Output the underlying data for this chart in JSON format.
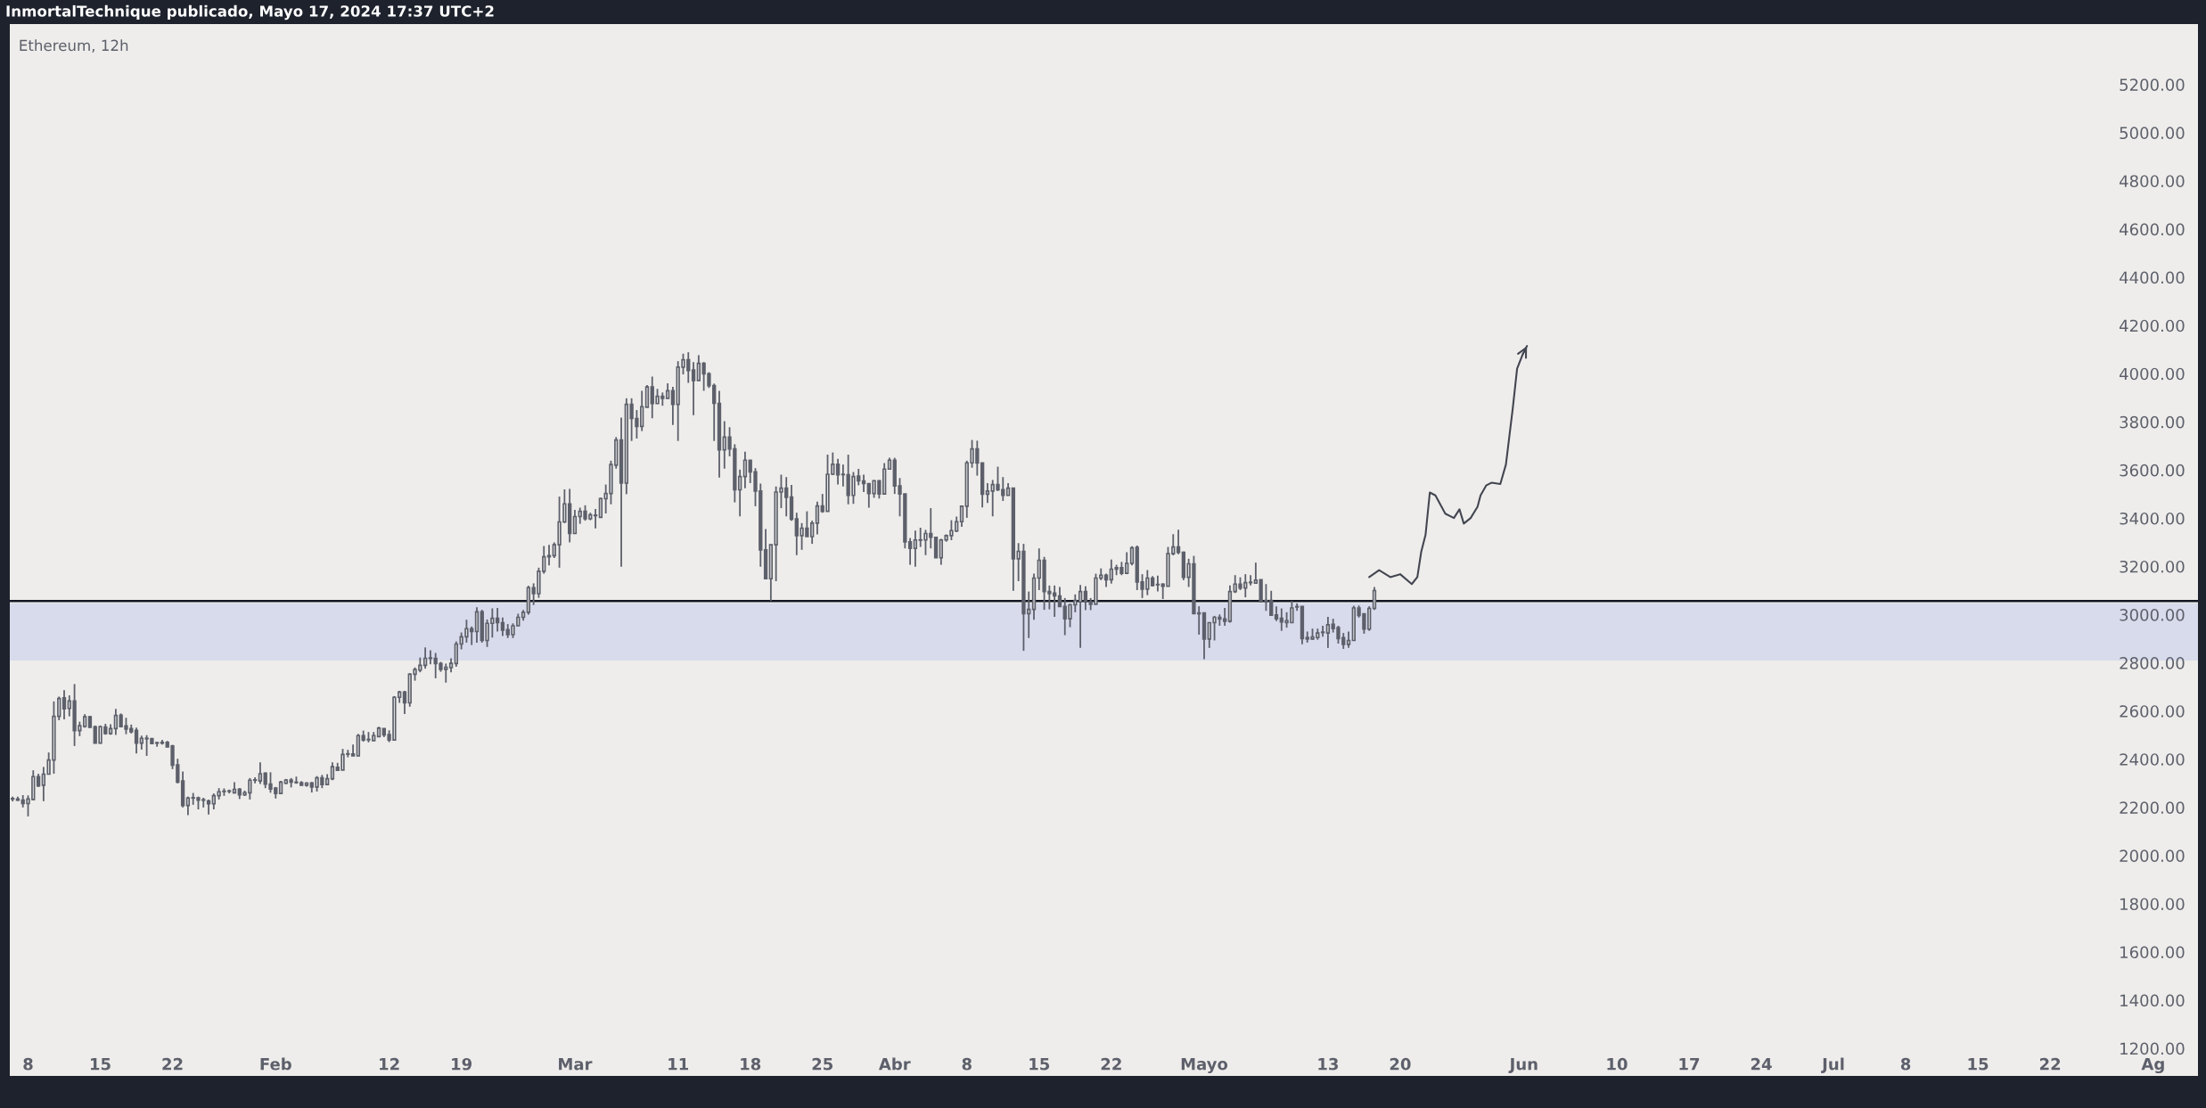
{
  "chart_data": {
    "type": "candlestick",
    "title": "Ethereum, 12h",
    "annotations": [
      "InmortalTechnique publicado, Mayo 17, 2024 17:37 UTC+2"
    ],
    "color": "#5d606b",
    "ref_lines": [
      {
        "axis": "y",
        "value": 3057,
        "color": "#131722",
        "line_style": "solid"
      }
    ],
    "bands": [
      {
        "axis": "y",
        "from": 2810,
        "to": 3047,
        "color": "#d8dbeb"
      }
    ],
    "xlim": [
      "2024-01-06T05:30",
      "2024-08-05T08:00"
    ],
    "ylim": [
      1182,
      5451
    ],
    "xticks": [
      {
        "value": "2024-01-08",
        "label": "8"
      },
      {
        "value": "2024-01-15",
        "label": "15"
      },
      {
        "value": "2024-01-22",
        "label": "22"
      },
      {
        "value": "2024-02-01",
        "label": "Feb"
      },
      {
        "value": "2024-02-12",
        "label": "12"
      },
      {
        "value": "2024-02-19",
        "label": "19"
      },
      {
        "value": "2024-03-01",
        "label": "Mar"
      },
      {
        "value": "2024-03-11",
        "label": "11"
      },
      {
        "value": "2024-03-18",
        "label": "18"
      },
      {
        "value": "2024-03-25",
        "label": "25"
      },
      {
        "value": "2024-04-01",
        "label": "Abr"
      },
      {
        "value": "2024-04-08",
        "label": "8"
      },
      {
        "value": "2024-04-15",
        "label": "15"
      },
      {
        "value": "2024-04-22",
        "label": "22"
      },
      {
        "value": "2024-05-01",
        "label": "Mayo"
      },
      {
        "value": "2024-05-13",
        "label": "13"
      },
      {
        "value": "2024-05-20",
        "label": "20"
      },
      {
        "value": "2024-06-01",
        "label": "Jun"
      },
      {
        "value": "2024-06-10",
        "label": "10"
      },
      {
        "value": "2024-06-17",
        "label": "17"
      },
      {
        "value": "2024-06-24",
        "label": "24"
      },
      {
        "value": "2024-07-01",
        "label": "Jul"
      },
      {
        "value": "2024-07-08",
        "label": "8"
      },
      {
        "value": "2024-07-15",
        "label": "15"
      },
      {
        "value": "2024-07-22",
        "label": "22"
      },
      {
        "value": "2024-08-01",
        "label": "Ag"
      }
    ],
    "yticks": [
      {
        "value": 1200,
        "label": "1200.00"
      },
      {
        "value": 1400,
        "label": "1400.00"
      },
      {
        "value": 1600,
        "label": "1600.00"
      },
      {
        "value": 1800,
        "label": "1800.00"
      },
      {
        "value": 2000,
        "label": "2000.00"
      },
      {
        "value": 2200,
        "label": "2200.00"
      },
      {
        "value": 2400,
        "label": "2400.00"
      },
      {
        "value": 2600,
        "label": "2600.00"
      },
      {
        "value": 2800,
        "label": "2800.00"
      },
      {
        "value": 3000,
        "label": "3000.00"
      },
      {
        "value": 3200,
        "label": "3200.00"
      },
      {
        "value": 3400,
        "label": "3400.00"
      },
      {
        "value": 3600,
        "label": "3600.00"
      },
      {
        "value": 3800,
        "label": "3800.00"
      },
      {
        "value": 4000,
        "label": "4000.00"
      },
      {
        "value": 4200,
        "label": "4200.00"
      },
      {
        "value": 4400,
        "label": "4400.00"
      },
      {
        "value": 4600,
        "label": "4600.00"
      },
      {
        "value": 4800,
        "label": "4800.00"
      },
      {
        "value": 5000,
        "label": "5000.00"
      },
      {
        "value": 5200,
        "label": "5200.00"
      }
    ],
    "grid": false,
    "legend": false,
    "series": [
      {
        "type": "line",
        "color": "#434651",
        "line_style": "solid",
        "x": [
          "2024-05-17T00:00",
          "2024-05-17T23:00",
          "2024-05-19T01:00",
          "2024-05-20T00:00",
          "2024-05-21T03:00",
          "2024-05-21T16:00",
          "2024-05-22T01:00",
          "2024-05-22T11:00",
          "2024-05-22T21:00",
          "2024-05-23T10:00",
          "2024-05-24T09:00",
          "2024-05-25T05:00",
          "2024-05-25T18:00",
          "2024-05-26T04:00",
          "2024-05-26T20:00",
          "2024-05-27T12:00",
          "2024-05-27T19:00",
          "2024-05-28T08:00",
          "2024-05-28T21:00",
          "2024-05-29T17:00",
          "2024-05-30T06:00",
          "2024-05-30T22:00",
          "2024-05-31T08:00",
          "2024-05-31T21:00",
          "2024-06-01T07:00"
        ],
        "values": [
          3156,
          3185,
          3156,
          3168,
          3127,
          3156,
          3261,
          3331,
          3507,
          3495,
          3419,
          3401,
          3437,
          3378,
          3401,
          3448,
          3495,
          3536,
          3548,
          3542,
          3623,
          3857,
          4021,
          4080,
          4115
        ]
      }
    ],
    "x": [
      "2024-01-06T12:00",
      "2024-01-07T00:00",
      "2024-01-07T12:00",
      "2024-01-08T00:00",
      "2024-01-08T12:00",
      "2024-01-09T00:00",
      "2024-01-09T12:00",
      "2024-01-10T00:00",
      "2024-01-10T12:00",
      "2024-01-11T00:00",
      "2024-01-11T12:00",
      "2024-01-12T00:00",
      "2024-01-12T12:00",
      "2024-01-13T00:00",
      "2024-01-13T12:00",
      "2024-01-14T00:00",
      "2024-01-14T12:00",
      "2024-01-15T00:00",
      "2024-01-15T12:00",
      "2024-01-16T00:00",
      "2024-01-16T12:00",
      "2024-01-17T00:00",
      "2024-01-17T12:00",
      "2024-01-18T00:00",
      "2024-01-18T12:00",
      "2024-01-19T00:00",
      "2024-01-19T12:00",
      "2024-01-20T00:00",
      "2024-01-20T12:00",
      "2024-01-21T00:00",
      "2024-01-21T12:00",
      "2024-01-22T00:00",
      "2024-01-22T12:00",
      "2024-01-23T00:00",
      "2024-01-23T12:00",
      "2024-01-24T00:00",
      "2024-01-24T12:00",
      "2024-01-25T00:00",
      "2024-01-25T12:00",
      "2024-01-26T00:00",
      "2024-01-26T12:00",
      "2024-01-27T00:00",
      "2024-01-27T12:00",
      "2024-01-28T00:00",
      "2024-01-28T12:00",
      "2024-01-29T00:00",
      "2024-01-29T12:00",
      "2024-01-30T00:00",
      "2024-01-30T12:00",
      "2024-01-31T00:00",
      "2024-01-31T12:00",
      "2024-02-01T00:00",
      "2024-02-01T12:00",
      "2024-02-02T00:00",
      "2024-02-02T12:00",
      "2024-02-03T00:00",
      "2024-02-03T12:00",
      "2024-02-04T00:00",
      "2024-02-04T12:00",
      "2024-02-05T00:00",
      "2024-02-05T12:00",
      "2024-02-06T00:00",
      "2024-02-06T12:00",
      "2024-02-07T00:00",
      "2024-02-07T12:00",
      "2024-02-08T00:00",
      "2024-02-08T12:00",
      "2024-02-09T00:00",
      "2024-02-09T12:00",
      "2024-02-10T00:00",
      "2024-02-10T12:00",
      "2024-02-11T00:00",
      "2024-02-11T12:00",
      "2024-02-12T00:00",
      "2024-02-12T12:00",
      "2024-02-13T00:00",
      "2024-02-13T12:00",
      "2024-02-14T00:00",
      "2024-02-14T12:00",
      "2024-02-15T00:00",
      "2024-02-15T12:00",
      "2024-02-16T00:00",
      "2024-02-16T12:00",
      "2024-02-17T00:00",
      "2024-02-17T12:00",
      "2024-02-18T00:00",
      "2024-02-18T12:00",
      "2024-02-19T00:00",
      "2024-02-19T12:00",
      "2024-02-20T00:00",
      "2024-02-20T12:00",
      "2024-02-21T00:00",
      "2024-02-21T12:00",
      "2024-02-22T00:00",
      "2024-02-22T12:00",
      "2024-02-23T00:00",
      "2024-02-23T12:00",
      "2024-02-24T00:00",
      "2024-02-24T12:00",
      "2024-02-25T00:00",
      "2024-02-25T12:00",
      "2024-02-26T00:00",
      "2024-02-26T12:00",
      "2024-02-27T00:00",
      "2024-02-27T12:00",
      "2024-02-28T00:00",
      "2024-02-28T12:00",
      "2024-02-29T00:00",
      "2024-02-29T12:00",
      "2024-03-01T00:00",
      "2024-03-01T12:00",
      "2024-03-02T00:00",
      "2024-03-02T12:00",
      "2024-03-03T00:00",
      "2024-03-03T12:00",
      "2024-03-04T00:00",
      "2024-03-04T12:00",
      "2024-03-05T00:00",
      "2024-03-05T12:00",
      "2024-03-06T00:00",
      "2024-03-06T12:00",
      "2024-03-07T00:00",
      "2024-03-07T12:00",
      "2024-03-08T00:00",
      "2024-03-08T12:00",
      "2024-03-09T00:00",
      "2024-03-09T12:00",
      "2024-03-10T00:00",
      "2024-03-10T12:00",
      "2024-03-11T00:00",
      "2024-03-11T12:00",
      "2024-03-12T00:00",
      "2024-03-12T12:00",
      "2024-03-13T00:00",
      "2024-03-13T12:00",
      "2024-03-14T00:00",
      "2024-03-14T12:00",
      "2024-03-15T00:00",
      "2024-03-15T12:00",
      "2024-03-16T00:00",
      "2024-03-16T12:00",
      "2024-03-17T00:00",
      "2024-03-17T12:00",
      "2024-03-18T00:00",
      "2024-03-18T12:00",
      "2024-03-19T00:00",
      "2024-03-19T12:00",
      "2024-03-20T00:00",
      "2024-03-20T12:00",
      "2024-03-21T00:00",
      "2024-03-21T12:00",
      "2024-03-22T00:00",
      "2024-03-22T12:00",
      "2024-03-23T00:00",
      "2024-03-23T12:00",
      "2024-03-24T00:00",
      "2024-03-24T12:00",
      "2024-03-25T00:00",
      "2024-03-25T12:00",
      "2024-03-26T00:00",
      "2024-03-26T12:00",
      "2024-03-27T00:00",
      "2024-03-27T12:00",
      "2024-03-28T00:00",
      "2024-03-28T12:00",
      "2024-03-29T00:00",
      "2024-03-29T12:00",
      "2024-03-30T00:00",
      "2024-03-30T12:00",
      "2024-03-31T00:00",
      "2024-03-31T12:00",
      "2024-04-01T00:00",
      "2024-04-01T12:00",
      "2024-04-02T00:00",
      "2024-04-02T12:00",
      "2024-04-03T00:00",
      "2024-04-03T12:00",
      "2024-04-04T00:00",
      "2024-04-04T12:00",
      "2024-04-05T00:00",
      "2024-04-05T12:00",
      "2024-04-06T00:00",
      "2024-04-06T12:00",
      "2024-04-07T00:00",
      "2024-04-07T12:00",
      "2024-04-08T00:00",
      "2024-04-08T12:00",
      "2024-04-09T00:00",
      "2024-04-09T12:00",
      "2024-04-10T00:00",
      "2024-04-10T12:00",
      "2024-04-11T00:00",
      "2024-04-11T12:00",
      "2024-04-12T00:00",
      "2024-04-12T12:00",
      "2024-04-13T00:00",
      "2024-04-13T12:00",
      "2024-04-14T00:00",
      "2024-04-14T12:00",
      "2024-04-15T00:00",
      "2024-04-15T12:00",
      "2024-04-16T00:00",
      "2024-04-16T12:00",
      "2024-04-17T00:00",
      "2024-04-17T12:00",
      "2024-04-18T00:00",
      "2024-04-18T12:00",
      "2024-04-19T00:00",
      "2024-04-19T12:00",
      "2024-04-20T00:00",
      "2024-04-20T12:00",
      "2024-04-21T00:00",
      "2024-04-21T12:00",
      "2024-04-22T00:00",
      "2024-04-22T12:00",
      "2024-04-23T00:00",
      "2024-04-23T12:00",
      "2024-04-24T00:00",
      "2024-04-24T12:00",
      "2024-04-25T00:00",
      "2024-04-25T12:00",
      "2024-04-26T00:00",
      "2024-04-26T12:00",
      "2024-04-27T00:00",
      "2024-04-27T12:00",
      "2024-04-28T00:00",
      "2024-04-28T12:00",
      "2024-04-29T00:00",
      "2024-04-29T12:00",
      "2024-04-30T00:00",
      "2024-04-30T12:00",
      "2024-05-01T00:00",
      "2024-05-01T12:00",
      "2024-05-02T00:00",
      "2024-05-02T12:00",
      "2024-05-03T00:00",
      "2024-05-03T12:00",
      "2024-05-04T00:00",
      "2024-05-04T12:00",
      "2024-05-05T00:00",
      "2024-05-05T12:00",
      "2024-05-06T00:00",
      "2024-05-06T12:00",
      "2024-05-07T00:00",
      "2024-05-07T12:00",
      "2024-05-08T00:00",
      "2024-05-08T12:00",
      "2024-05-09T00:00",
      "2024-05-09T12:00",
      "2024-05-10T00:00",
      "2024-05-10T12:00",
      "2024-05-11T00:00",
      "2024-05-11T12:00",
      "2024-05-12T00:00",
      "2024-05-12T12:00",
      "2024-05-13T00:00",
      "2024-05-13T12:00",
      "2024-05-14T00:00",
      "2024-05-14T12:00",
      "2024-05-15T00:00",
      "2024-05-15T12:00",
      "2024-05-16T00:00",
      "2024-05-16T12:00",
      "2024-05-17T00:00",
      "2024-05-17T12:00"
    ],
    "ohlc": [
      [
        2237,
        2245,
        2225,
        2235
      ],
      [
        2235,
        2245,
        2228,
        2230
      ],
      [
        2230,
        2251,
        2200,
        2216
      ],
      [
        2216,
        2250,
        2163,
        2235
      ],
      [
        2233,
        2354,
        2230,
        2328
      ],
      [
        2328,
        2340,
        2285,
        2289
      ],
      [
        2292,
        2368,
        2226,
        2338
      ],
      [
        2338,
        2428,
        2338,
        2397
      ],
      [
        2397,
        2640,
        2340,
        2578
      ],
      [
        2578,
        2660,
        2562,
        2652
      ],
      [
        2655,
        2687,
        2566,
        2609
      ],
      [
        2611,
        2665,
        2578,
        2642
      ],
      [
        2642,
        2712,
        2455,
        2519
      ],
      [
        2519,
        2556,
        2496,
        2539
      ],
      [
        2536,
        2587,
        2531,
        2576
      ],
      [
        2576,
        2580,
        2530,
        2533
      ],
      [
        2535,
        2540,
        2465,
        2467
      ],
      [
        2467,
        2540,
        2465,
        2535
      ],
      [
        2534,
        2547,
        2502,
        2507
      ],
      [
        2507,
        2545,
        2502,
        2527
      ],
      [
        2527,
        2609,
        2501,
        2582
      ],
      [
        2583,
        2590,
        2532,
        2535
      ],
      [
        2538,
        2572,
        2504,
        2525
      ],
      [
        2527,
        2544,
        2507,
        2514
      ],
      [
        2520,
        2531,
        2424,
        2467
      ],
      [
        2467,
        2498,
        2440,
        2487
      ],
      [
        2487,
        2500,
        2414,
        2485
      ],
      [
        2486,
        2487,
        2462,
        2465
      ],
      [
        2467,
        2473,
        2452,
        2467
      ],
      [
        2467,
        2480,
        2461,
        2470
      ],
      [
        2470,
        2476,
        2450,
        2451
      ],
      [
        2455,
        2460,
        2359,
        2375
      ],
      [
        2377,
        2402,
        2300,
        2305
      ],
      [
        2310,
        2349,
        2200,
        2208
      ],
      [
        2208,
        2245,
        2168,
        2239
      ],
      [
        2239,
        2260,
        2211,
        2240
      ],
      [
        2240,
        2245,
        2192,
        2230
      ],
      [
        2230,
        2240,
        2200,
        2232
      ],
      [
        2227,
        2233,
        2171,
        2215
      ],
      [
        2215,
        2258,
        2192,
        2249
      ],
      [
        2249,
        2280,
        2233,
        2265
      ],
      [
        2266,
        2279,
        2248,
        2267
      ],
      [
        2267,
        2274,
        2258,
        2268
      ],
      [
        2261,
        2305,
        2258,
        2275
      ],
      [
        2276,
        2280,
        2235,
        2252
      ],
      [
        2252,
        2270,
        2248,
        2261
      ],
      [
        2261,
        2322,
        2233,
        2313
      ],
      [
        2313,
        2325,
        2300,
        2314
      ],
      [
        2310,
        2387,
        2297,
        2340
      ],
      [
        2342,
        2345,
        2280,
        2297
      ],
      [
        2297,
        2346,
        2261,
        2276
      ],
      [
        2280,
        2285,
        2237,
        2258
      ],
      [
        2258,
        2310,
        2255,
        2305
      ],
      [
        2300,
        2318,
        2297,
        2314
      ],
      [
        2314,
        2322,
        2283,
        2305
      ],
      [
        2305,
        2328,
        2298,
        2303
      ],
      [
        2303,
        2309,
        2290,
        2292
      ],
      [
        2292,
        2305,
        2286,
        2301
      ],
      [
        2302,
        2305,
        2262,
        2285
      ],
      [
        2285,
        2330,
        2266,
        2323
      ],
      [
        2323,
        2335,
        2280,
        2295
      ],
      [
        2295,
        2338,
        2295,
        2319
      ],
      [
        2319,
        2387,
        2313,
        2369
      ],
      [
        2366,
        2385,
        2354,
        2354
      ],
      [
        2355,
        2443,
        2355,
        2420
      ],
      [
        2421,
        2439,
        2408,
        2422
      ],
      [
        2422,
        2461,
        2413,
        2414
      ],
      [
        2414,
        2505,
        2413,
        2498
      ],
      [
        2498,
        2519,
        2473,
        2480
      ],
      [
        2481,
        2513,
        2470,
        2482
      ],
      [
        2477,
        2513,
        2477,
        2498
      ],
      [
        2494,
        2535,
        2494,
        2529
      ],
      [
        2527,
        2527,
        2492,
        2501
      ],
      [
        2502,
        2520,
        2471,
        2480
      ],
      [
        2480,
        2662,
        2478,
        2657
      ],
      [
        2657,
        2684,
        2634,
        2679
      ],
      [
        2679,
        2684,
        2588,
        2634
      ],
      [
        2634,
        2757,
        2618,
        2753
      ],
      [
        2753,
        2781,
        2726,
        2772
      ],
      [
        2770,
        2822,
        2761,
        2790
      ],
      [
        2790,
        2864,
        2776,
        2819
      ],
      [
        2819,
        2852,
        2794,
        2819
      ],
      [
        2819,
        2841,
        2736,
        2797
      ],
      [
        2797,
        2804,
        2763,
        2773
      ],
      [
        2773,
        2797,
        2718,
        2782
      ],
      [
        2780,
        2819,
        2761,
        2798
      ],
      [
        2797,
        2889,
        2784,
        2878
      ],
      [
        2878,
        2926,
        2856,
        2908
      ],
      [
        2908,
        2979,
        2884,
        2942
      ],
      [
        2942,
        2951,
        2874,
        2930
      ],
      [
        2930,
        3031,
        2884,
        3012
      ],
      [
        3012,
        3020,
        2884,
        2893
      ],
      [
        2893,
        2980,
        2866,
        2964
      ],
      [
        2964,
        3026,
        2905,
        2985
      ],
      [
        2985,
        3028,
        2930,
        2967
      ],
      [
        2967,
        2988,
        2911,
        2936
      ],
      [
        2938,
        2961,
        2903,
        2917
      ],
      [
        2917,
        2964,
        2903,
        2954
      ],
      [
        2954,
        3004,
        2951,
        2989
      ],
      [
        2989,
        3020,
        2975,
        3010
      ],
      [
        3010,
        3120,
        3000,
        3112
      ],
      [
        3112,
        3130,
        3040,
        3087
      ],
      [
        3087,
        3195,
        3070,
        3180
      ],
      [
        3180,
        3285,
        3170,
        3240
      ],
      [
        3240,
        3290,
        3205,
        3245
      ],
      [
        3245,
        3300,
        3235,
        3290
      ],
      [
        3290,
        3490,
        3195,
        3385
      ],
      [
        3385,
        3520,
        3380,
        3460
      ],
      [
        3460,
        3522,
        3300,
        3337
      ],
      [
        3337,
        3435,
        3337,
        3407
      ],
      [
        3407,
        3444,
        3377,
        3429
      ],
      [
        3429,
        3454,
        3390,
        3398
      ],
      [
        3398,
        3423,
        3392,
        3414
      ],
      [
        3411,
        3439,
        3358,
        3413
      ],
      [
        3404,
        3485,
        3404,
        3482
      ],
      [
        3481,
        3540,
        3420,
        3503
      ],
      [
        3503,
        3639,
        3458,
        3623
      ],
      [
        3620,
        3737,
        3606,
        3725
      ],
      [
        3725,
        3818,
        3199,
        3546
      ],
      [
        3546,
        3898,
        3500,
        3873
      ],
      [
        3873,
        3898,
        3721,
        3814
      ],
      [
        3814,
        3849,
        3731,
        3781
      ],
      [
        3781,
        3929,
        3762,
        3863
      ],
      [
        3861,
        3953,
        3861,
        3945
      ],
      [
        3945,
        3988,
        3815,
        3876
      ],
      [
        3876,
        3937,
        3876,
        3906
      ],
      [
        3906,
        3922,
        3867,
        3898
      ],
      [
        3898,
        3960,
        3898,
        3929
      ],
      [
        3929,
        3945,
        3787,
        3873
      ],
      [
        3873,
        4052,
        3721,
        4027
      ],
      [
        4027,
        4083,
        3997,
        4058
      ],
      [
        4058,
        4089,
        3962,
        4013
      ],
      [
        4015,
        4048,
        3828,
        3972
      ],
      [
        3972,
        4077,
        3972,
        4043
      ],
      [
        4043,
        4048,
        3929,
        3999
      ],
      [
        4000,
        4006,
        3941,
        3950
      ],
      [
        3951,
        3959,
        3721,
        3877
      ],
      [
        3877,
        3929,
        3569,
        3684
      ],
      [
        3684,
        3803,
        3606,
        3737
      ],
      [
        3737,
        3778,
        3657,
        3688
      ],
      [
        3688,
        3707,
        3466,
        3518
      ],
      [
        3518,
        3602,
        3408,
        3573
      ],
      [
        3573,
        3676,
        3525,
        3641
      ],
      [
        3641,
        3641,
        3546,
        3592
      ],
      [
        3593,
        3608,
        3450,
        3513
      ],
      [
        3513,
        3544,
        3199,
        3269
      ],
      [
        3269,
        3355,
        3149,
        3149
      ],
      [
        3149,
        3290,
        3057,
        3290
      ],
      [
        3290,
        3532,
        3139,
        3509
      ],
      [
        3509,
        3581,
        3442,
        3525
      ],
      [
        3525,
        3571,
        3408,
        3487
      ],
      [
        3488,
        3538,
        3390,
        3396
      ],
      [
        3398,
        3423,
        3247,
        3328
      ],
      [
        3328,
        3380,
        3269,
        3359
      ],
      [
        3359,
        3429,
        3324,
        3324
      ],
      [
        3324,
        3390,
        3294,
        3380
      ],
      [
        3380,
        3469,
        3333,
        3451
      ],
      [
        3451,
        3501,
        3423,
        3429
      ],
      [
        3429,
        3664,
        3429,
        3583
      ],
      [
        3583,
        3673,
        3579,
        3624
      ],
      [
        3624,
        3647,
        3540,
        3580
      ],
      [
        3581,
        3623,
        3532,
        3581
      ],
      [
        3581,
        3664,
        3458,
        3495
      ],
      [
        3495,
        3592,
        3460,
        3573
      ],
      [
        3575,
        3605,
        3537,
        3555
      ],
      [
        3555,
        3581,
        3509,
        3544
      ],
      [
        3544,
        3546,
        3444,
        3503
      ],
      [
        3503,
        3558,
        3485,
        3556
      ],
      [
        3556,
        3558,
        3482,
        3501
      ],
      [
        3501,
        3629,
        3501,
        3604
      ],
      [
        3604,
        3651,
        3604,
        3641
      ],
      [
        3641,
        3651,
        3501,
        3534
      ],
      [
        3534,
        3567,
        3408,
        3501
      ],
      [
        3501,
        3501,
        3275,
        3302
      ],
      [
        3302,
        3318,
        3207,
        3275
      ],
      [
        3275,
        3349,
        3199,
        3310
      ],
      [
        3309,
        3361,
        3281,
        3310
      ],
      [
        3310,
        3352,
        3247,
        3337
      ],
      [
        3337,
        3442,
        3275,
        3321
      ],
      [
        3321,
        3322,
        3236,
        3236
      ],
      [
        3236,
        3315,
        3207,
        3310
      ],
      [
        3310,
        3333,
        3303,
        3328
      ],
      [
        3328,
        3392,
        3309,
        3349
      ],
      [
        3347,
        3407,
        3343,
        3386
      ],
      [
        3386,
        3450,
        3365,
        3450
      ],
      [
        3450,
        3639,
        3402,
        3630
      ],
      [
        3630,
        3725,
        3610,
        3688
      ],
      [
        3688,
        3722,
        3577,
        3629
      ],
      [
        3630,
        3630,
        3445,
        3500
      ],
      [
        3500,
        3546,
        3464,
        3513
      ],
      [
        3513,
        3559,
        3408,
        3540
      ],
      [
        3540,
        3614,
        3513,
        3518
      ],
      [
        3519,
        3571,
        3472,
        3495
      ],
      [
        3495,
        3546,
        3495,
        3525
      ],
      [
        3525,
        3525,
        3099,
        3232
      ],
      [
        3232,
        3297,
        3139,
        3263
      ],
      [
        3263,
        3294,
        2850,
        3004
      ],
      [
        3004,
        3096,
        2903,
        3022
      ],
      [
        3022,
        3170,
        2979,
        3152
      ],
      [
        3152,
        3275,
        3102,
        3226
      ],
      [
        3226,
        3240,
        3020,
        3096
      ],
      [
        3096,
        3121,
        3022,
        3087
      ],
      [
        3090,
        3121,
        2991,
        3078
      ],
      [
        3078,
        3115,
        3032,
        3034
      ],
      [
        3034,
        3069,
        2915,
        2983
      ],
      [
        2983,
        3045,
        2948,
        3041
      ],
      [
        3041,
        3084,
        3010,
        3059
      ],
      [
        3053,
        3123,
        2862,
        3096
      ],
      [
        3096,
        3118,
        3019,
        3053
      ],
      [
        3053,
        3069,
        3019,
        3043
      ],
      [
        3043,
        3170,
        3043,
        3152
      ],
      [
        3152,
        3192,
        3143,
        3164
      ],
      [
        3164,
        3170,
        3115,
        3145
      ],
      [
        3145,
        3229,
        3129,
        3189
      ],
      [
        3189,
        3207,
        3164,
        3195
      ],
      [
        3195,
        3219,
        3164,
        3172
      ],
      [
        3172,
        3259,
        3168,
        3213
      ],
      [
        3213,
        3284,
        3205,
        3277
      ],
      [
        3279,
        3287,
        3102,
        3136
      ],
      [
        3136,
        3168,
        3069,
        3106
      ],
      [
        3106,
        3185,
        3081,
        3152
      ],
      [
        3152,
        3160,
        3117,
        3121
      ],
      [
        3124,
        3162,
        3096,
        3125
      ],
      [
        3127,
        3130,
        3065,
        3118
      ],
      [
        3118,
        3281,
        3118,
        3253
      ],
      [
        3253,
        3334,
        3246,
        3281
      ],
      [
        3281,
        3353,
        3251,
        3259
      ],
      [
        3259,
        3262,
        3143,
        3155
      ],
      [
        3155,
        3232,
        3115,
        3211
      ],
      [
        3211,
        3244,
        3004,
        3004
      ],
      [
        3007,
        3035,
        2917,
        3004
      ],
      [
        3007,
        3007,
        2815,
        2899
      ],
      [
        2899,
        2967,
        2862,
        2967
      ],
      [
        2967,
        2995,
        2893,
        2989
      ],
      [
        2989,
        3001,
        2954,
        2982
      ],
      [
        2982,
        3028,
        2954,
        2973
      ],
      [
        2973,
        3121,
        2967,
        3096
      ],
      [
        3096,
        3164,
        3090,
        3127
      ],
      [
        3127,
        3155,
        3102,
        3111
      ],
      [
        3111,
        3168,
        3072,
        3133
      ],
      [
        3133,
        3164,
        3121,
        3133
      ],
      [
        3131,
        3216,
        3130,
        3143
      ],
      [
        3145,
        3145,
        3050,
        3053
      ],
      [
        3059,
        3127,
        3016,
        3053
      ],
      [
        3059,
        3099,
        2995,
        2998
      ],
      [
        2999,
        3034,
        2973,
        2983
      ],
      [
        2985,
        3026,
        2933,
        2970
      ],
      [
        2967,
        3010,
        2946,
        2975
      ],
      [
        2967,
        3057,
        2967,
        3028
      ],
      [
        3032,
        3047,
        3016,
        3032
      ],
      [
        3034,
        3035,
        2877,
        2901
      ],
      [
        2905,
        2930,
        2884,
        2899
      ],
      [
        2899,
        2942,
        2896,
        2907
      ],
      [
        2905,
        2942,
        2896,
        2924
      ],
      [
        2926,
        2954,
        2909,
        2926
      ],
      [
        2924,
        2991,
        2862,
        2958
      ],
      [
        2960,
        2983,
        2926,
        2942
      ],
      [
        2946,
        2954,
        2880,
        2901
      ],
      [
        2905,
        2924,
        2858,
        2877
      ],
      [
        2877,
        2930,
        2862,
        2893
      ],
      [
        2893,
        3037,
        2893,
        3028
      ],
      [
        3028,
        3038,
        2988,
        2997
      ],
      [
        3004,
        3004,
        2921,
        2940
      ],
      [
        2940,
        3035,
        2933,
        3026
      ],
      [
        3026,
        3115,
        3020,
        3100
      ]
    ]
  }
}
